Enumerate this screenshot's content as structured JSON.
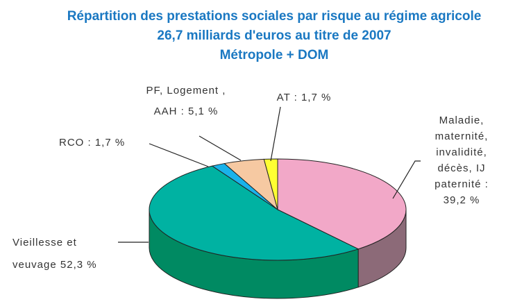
{
  "chart_data": {
    "type": "pie3d",
    "title": [
      "Répartition des prestations sociales par risque au régime agricole",
      "26,7 milliards d'euros au titre de 2007",
      "Métropole + DOM"
    ],
    "categories": [
      [
        "Maladie,",
        "maternité,",
        "invalidité,",
        "décès, IJ",
        "paternité :",
        "39,2 %"
      ],
      [
        "Vieillesse et",
        "veuvage 52,3 %"
      ],
      [
        "RCO : 1,7 %"
      ],
      [
        "PF, Logement ,",
        "AAH : 5,1 %"
      ],
      [
        "AT : 1,7 %"
      ]
    ],
    "values": [
      39.2,
      52.3,
      1.7,
      5.1,
      1.7
    ],
    "colors": [
      "#f2a8c8",
      "#00b2a2",
      "#1ab2ea",
      "#f6c9a2",
      "#ffff33"
    ],
    "side_colors": [
      "#8c6a78",
      "#008a62",
      "#0a7aa8",
      "#b08a68",
      "#b0b020"
    ]
  }
}
